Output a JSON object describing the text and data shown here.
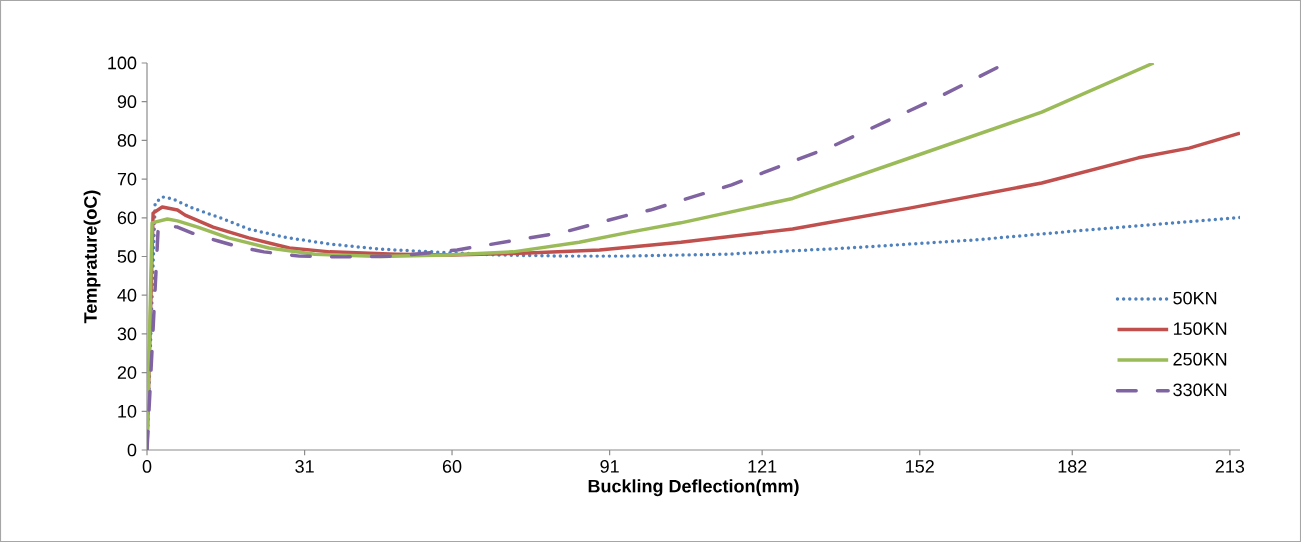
{
  "chart_data": {
    "type": "line",
    "xlabel": "Buckling Deflection(mm)",
    "ylabel": "Temprature(oC)",
    "xlim": [
      0,
      215
    ],
    "ylim": [
      0,
      100
    ],
    "xticks": [
      0,
      31,
      60,
      91,
      121,
      152,
      182,
      213
    ],
    "yticks": [
      0,
      10,
      20,
      30,
      40,
      50,
      60,
      70,
      80,
      90,
      100
    ],
    "legend": "right",
    "series": [
      {
        "name": "50KN",
        "color": "#4f81bd",
        "line_style": "dotted",
        "x": [
          0,
          1.6,
          3,
          5,
          9,
          14,
          20,
          27,
          36,
          46,
          56,
          69,
          82,
          94,
          114,
          138,
          163,
          187,
          215
        ],
        "values": [
          0,
          63.8,
          65.4,
          64.9,
          62.5,
          60.2,
          57.1,
          55,
          53.2,
          51.9,
          51.2,
          50.4,
          50.1,
          50.1,
          50.6,
          52.2,
          54.3,
          57.1,
          60.1
        ]
      },
      {
        "name": "150KN",
        "color": "#c0504d",
        "line_style": "solid",
        "x": [
          0,
          1.2,
          3,
          6,
          7.5,
          13,
          20,
          28,
          36,
          49,
          60,
          75,
          89,
          105,
          127,
          150,
          176,
          195,
          205,
          215
        ],
        "values": [
          0,
          61.2,
          62.8,
          62,
          60.7,
          57.6,
          54.8,
          52.2,
          51.2,
          50.6,
          50.4,
          50.9,
          51.7,
          53.7,
          57.1,
          62.5,
          69,
          75.5,
          78,
          81.9
        ]
      },
      {
        "name": "250KN",
        "color": "#9bbb59",
        "line_style": "solid",
        "x": [
          0,
          1,
          4,
          6,
          10,
          16,
          24,
          33,
          46,
          59,
          72,
          85,
          95,
          105,
          127,
          149,
          176,
          198
        ],
        "values": [
          0,
          58.7,
          59.7,
          59.2,
          57.6,
          54.8,
          52.2,
          50.6,
          50,
          50.4,
          51.2,
          53.7,
          56.3,
          58.7,
          65,
          75,
          87.3,
          100
        ]
      },
      {
        "name": "330KN",
        "color": "#8064a2",
        "line_style": "dashed",
        "x": [
          0,
          2.2,
          4,
          6,
          9,
          14,
          18,
          23,
          30,
          39,
          49,
          61,
          73,
          82,
          94,
          99,
          115,
          135,
          155,
          169
        ],
        "values": [
          0,
          57.4,
          57.9,
          57.6,
          56,
          54,
          52.5,
          51.2,
          50.1,
          49.9,
          50.1,
          51.7,
          54.3,
          56.3,
          60.5,
          62,
          68.5,
          78.6,
          90.7,
          100
        ]
      }
    ]
  }
}
